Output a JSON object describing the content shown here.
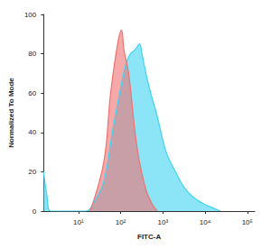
{
  "chart_data": {
    "type": "area",
    "x_label": "FITC-A",
    "y_label": "Normalized To Mode",
    "log": "x",
    "grid": false,
    "xlim": [
      1.5,
      150000
    ],
    "xticks": [
      {
        "value": 10,
        "label": "10¹"
      },
      {
        "value": 100,
        "label": "10²"
      },
      {
        "value": 1000,
        "label": "10³"
      },
      {
        "value": 10000,
        "label": "10⁴"
      },
      {
        "value": 100000,
        "label": "10⁵"
      }
    ],
    "ylim": [
      0,
      100
    ],
    "yticks": [
      0,
      20,
      40,
      60,
      80,
      100
    ],
    "series": [
      {
        "color": "#3fd3f2",
        "x": [
          1.5,
          1.8,
          2.2,
          15,
          24,
          40,
          64,
          95,
          135,
          170,
          220,
          280,
          320,
          450,
          740,
          1200,
          2000,
          3200,
          5300,
          8700,
          14000,
          23000
        ],
        "values": [
          20,
          8,
          0,
          0,
          5,
          15,
          40,
          60,
          75,
          80,
          82,
          85,
          80,
          65,
          48,
          30,
          20,
          12,
          7,
          4,
          2,
          0
        ]
      },
      {
        "color": "#f07070",
        "x": [
          19,
          40,
          58,
          85,
          105,
          120,
          155,
          220,
          280,
          410,
          580,
          740
        ],
        "values": [
          0,
          25,
          60,
          85,
          92,
          82,
          70,
          40,
          25,
          10,
          3,
          0
        ]
      }
    ]
  }
}
